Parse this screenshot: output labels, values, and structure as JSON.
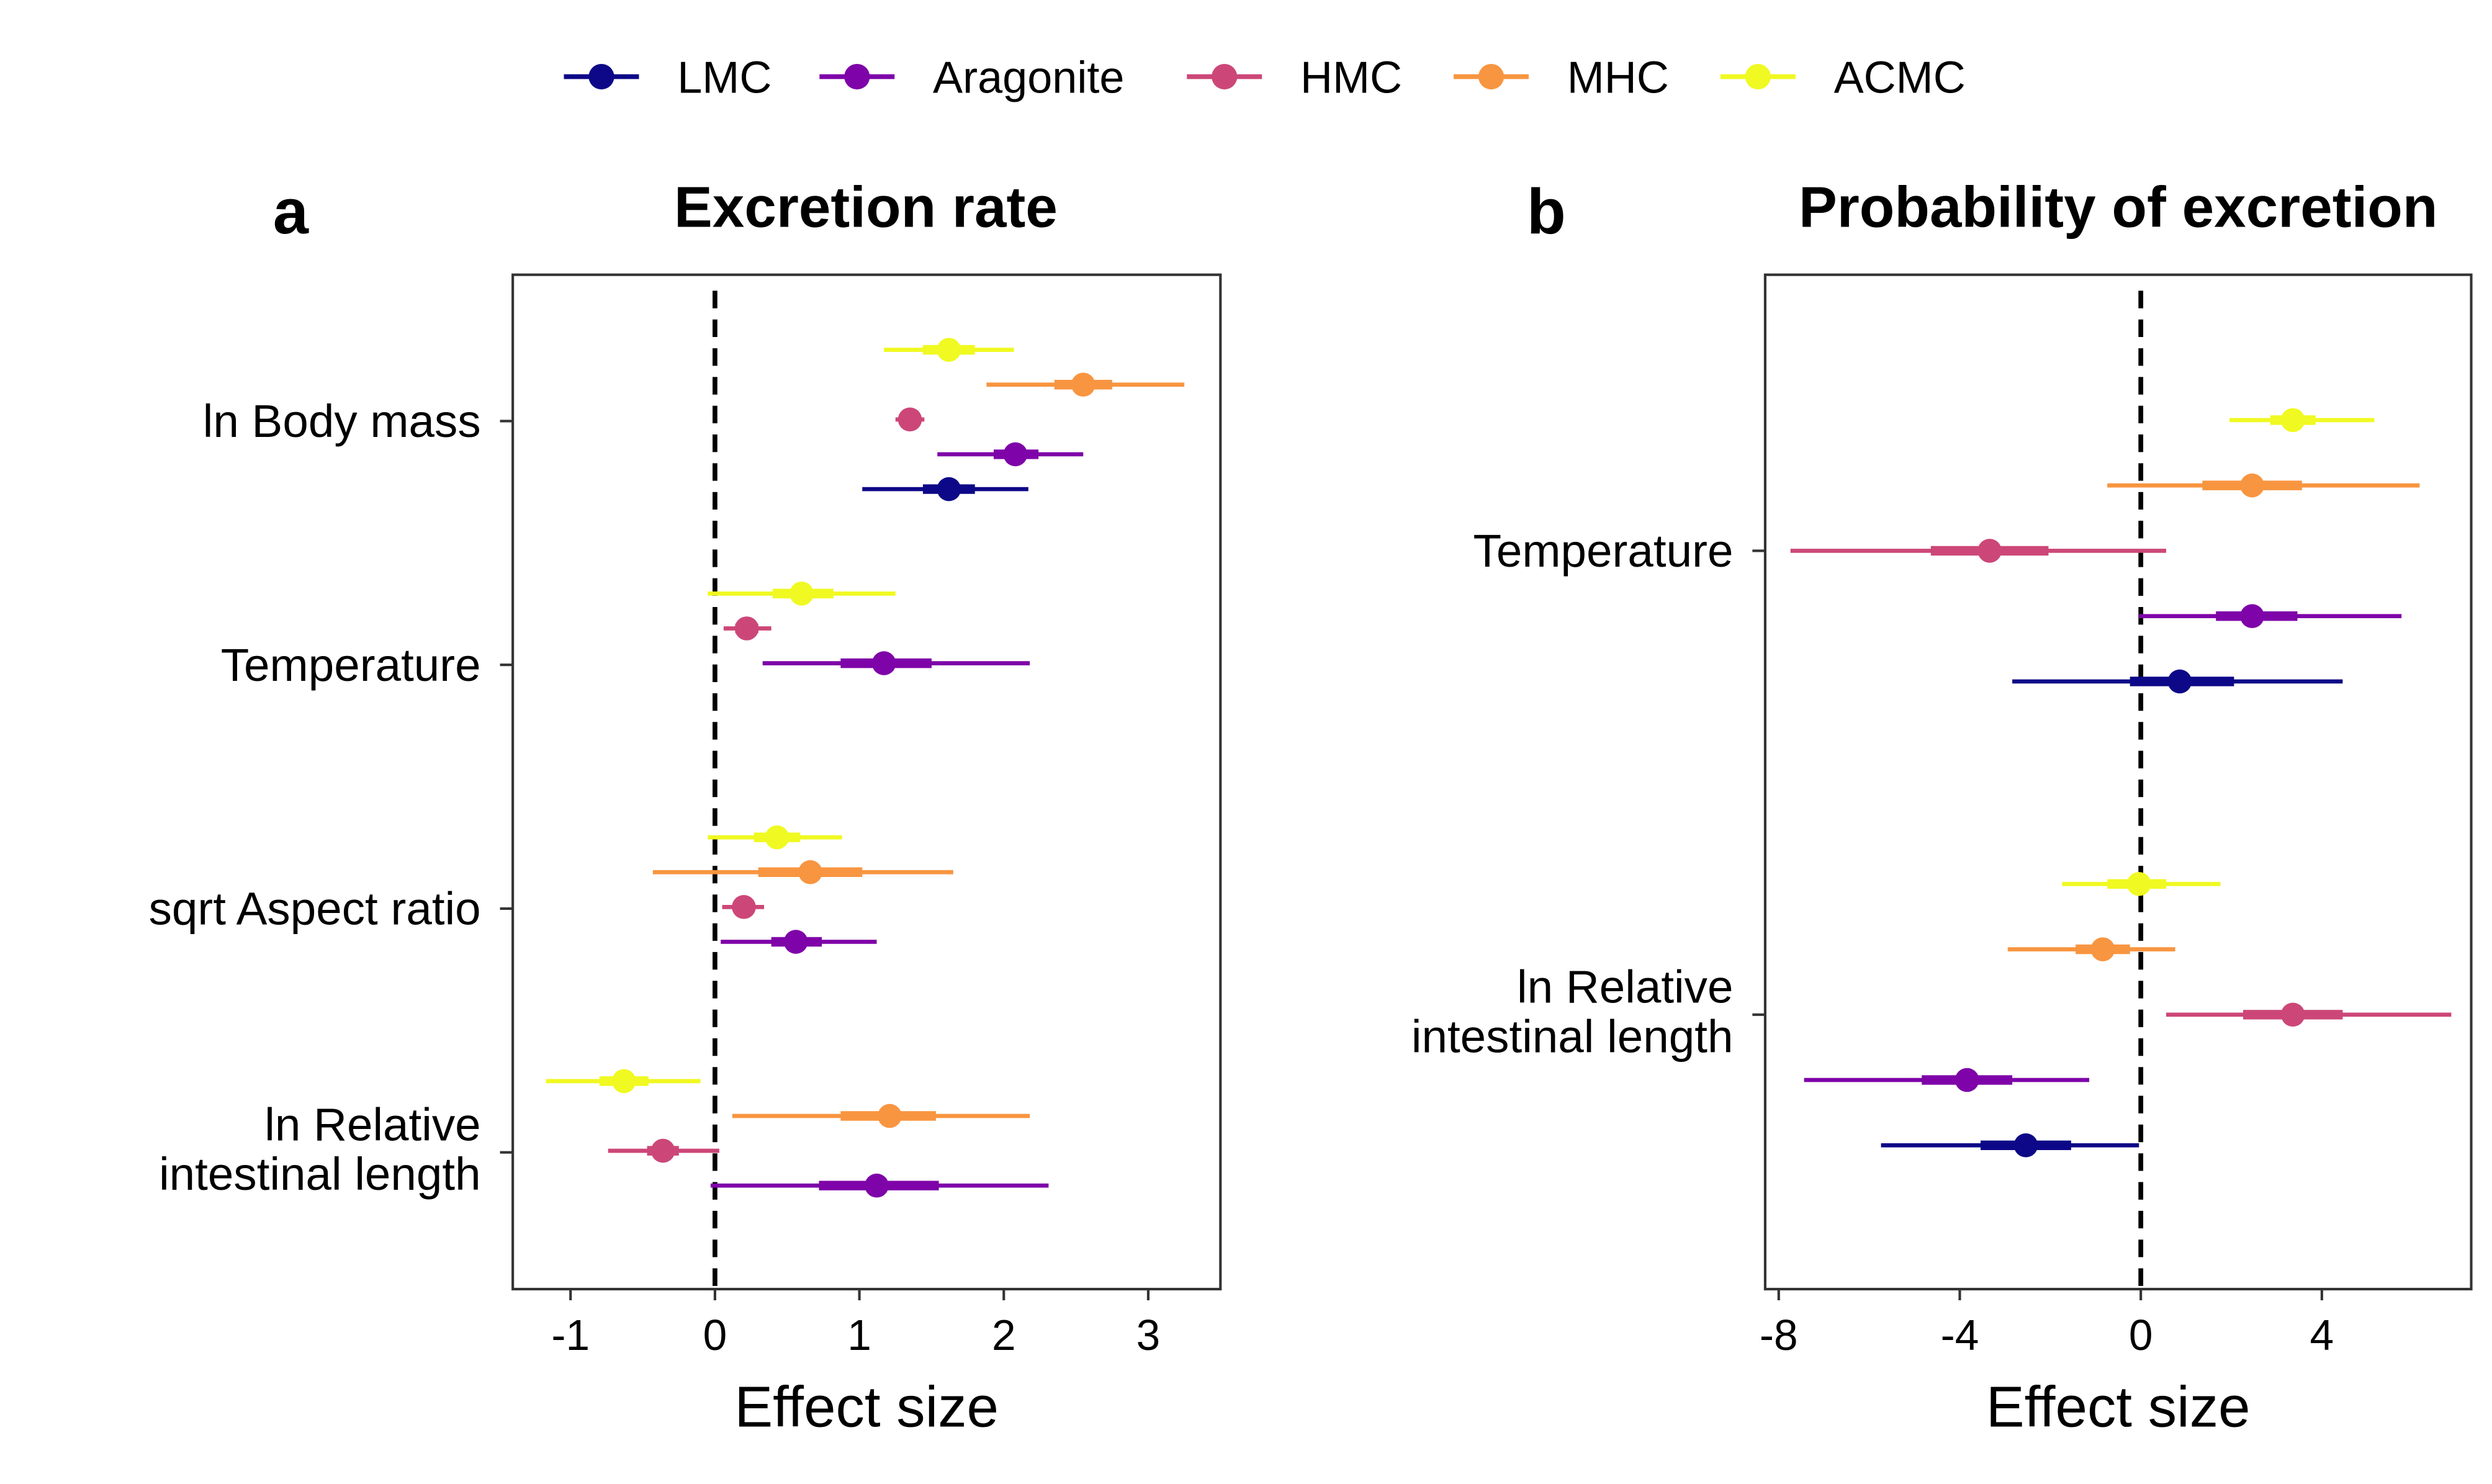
{
  "legend": {
    "items": [
      {
        "label": "LMC",
        "color": "#0d0887"
      },
      {
        "label": "Aragonite",
        "color": "#7e03a8"
      },
      {
        "label": "HMC",
        "color": "#cc4778"
      },
      {
        "label": "MHC",
        "color": "#f89540"
      },
      {
        "label": "ACMC",
        "color": "#f0f921"
      }
    ]
  },
  "chart_data": [
    {
      "type": "scatter",
      "panel_letter": "a",
      "title": "Excretion rate",
      "xlabel": "Effect size",
      "ylabel": "",
      "xlim": [
        -1.4,
        3.5
      ],
      "xticks": [
        -1,
        0,
        1,
        2,
        3
      ],
      "xtick_labels": [
        "-1",
        "0",
        "1",
        "2",
        "3"
      ],
      "reference_line": 0,
      "legend_position": "top",
      "categories": [
        {
          "label": [
            "ln Body mass"
          ],
          "rows": [
            {
              "series": "ACMC",
              "estimate": 1.62,
              "inner": [
                1.44,
                1.8
              ],
              "outer": [
                1.17,
                2.07
              ]
            },
            {
              "series": "MHC",
              "estimate": 2.55,
              "inner": [
                2.35,
                2.75
              ],
              "outer": [
                1.88,
                3.25
              ]
            },
            {
              "series": "HMC",
              "estimate": 1.35,
              "inner": [
                1.29,
                1.41
              ],
              "outer": [
                1.25,
                1.45
              ]
            },
            {
              "series": "Aragonite",
              "estimate": 2.08,
              "inner": [
                1.93,
                2.24
              ],
              "outer": [
                1.54,
                2.55
              ]
            },
            {
              "series": "LMC",
              "estimate": 1.62,
              "inner": [
                1.44,
                1.8
              ],
              "outer": [
                1.02,
                2.17
              ]
            }
          ]
        },
        {
          "label": [
            "Temperature"
          ],
          "rows": [
            {
              "series": "ACMC",
              "estimate": 0.6,
              "inner": [
                0.4,
                0.82
              ],
              "outer": [
                -0.05,
                1.25
              ]
            },
            {
              "series": "HMC",
              "estimate": 0.22,
              "inner": [
                0.14,
                0.3
              ],
              "outer": [
                0.06,
                0.39
              ]
            },
            {
              "series": "Aragonite",
              "estimate": 1.17,
              "inner": [
                0.87,
                1.5
              ],
              "outer": [
                0.33,
                2.18
              ]
            }
          ]
        },
        {
          "label": [
            "sqrt Aspect ratio"
          ],
          "rows": [
            {
              "series": "ACMC",
              "estimate": 0.43,
              "inner": [
                0.27,
                0.59
              ],
              "outer": [
                -0.05,
                0.88
              ]
            },
            {
              "series": "MHC",
              "estimate": 0.66,
              "inner": [
                0.3,
                1.02
              ],
              "outer": [
                -0.43,
                1.65
              ]
            },
            {
              "series": "HMC",
              "estimate": 0.2,
              "inner": [
                0.13,
                0.27
              ],
              "outer": [
                0.05,
                0.34
              ]
            },
            {
              "series": "Aragonite",
              "estimate": 0.56,
              "inner": [
                0.39,
                0.74
              ],
              "outer": [
                0.04,
                1.12
              ]
            }
          ]
        },
        {
          "label": [
            "ln Relative",
            "intestinal length"
          ],
          "rows": [
            {
              "series": "ACMC",
              "estimate": -0.63,
              "inner": [
                -0.8,
                -0.46
              ],
              "outer": [
                -1.17,
                -0.1
              ]
            },
            {
              "series": "MHC",
              "estimate": 1.21,
              "inner": [
                0.87,
                1.53
              ],
              "outer": [
                0.12,
                2.18
              ]
            },
            {
              "series": "HMC",
              "estimate": -0.36,
              "inner": [
                -0.47,
                -0.25
              ],
              "outer": [
                -0.74,
                0.03
              ]
            },
            {
              "series": "Aragonite",
              "estimate": 1.12,
              "inner": [
                0.72,
                1.55
              ],
              "outer": [
                -0.03,
                2.31
              ]
            }
          ]
        }
      ]
    },
    {
      "type": "scatter",
      "panel_letter": "b",
      "title": "Probability of excretion",
      "xlabel": "Effect size",
      "ylabel": "",
      "xlim": [
        -8.3,
        7.3
      ],
      "xticks": [
        -8,
        -4,
        0,
        4
      ],
      "xtick_labels": [
        "-8",
        "-4",
        "0",
        "4"
      ],
      "reference_line": 0,
      "legend_position": "top",
      "categories": [
        {
          "label": [
            "Temperature"
          ],
          "rows": [
            {
              "series": "ACMC",
              "estimate": 3.36,
              "inner": [
                2.86,
                3.86
              ],
              "outer": [
                1.96,
                5.16
              ]
            },
            {
              "series": "MHC",
              "estimate": 2.46,
              "inner": [
                1.36,
                3.56
              ],
              "outer": [
                -0.74,
                6.16
              ]
            },
            {
              "series": "HMC",
              "estimate": -3.34,
              "inner": [
                -4.64,
                -2.04
              ],
              "outer": [
                -7.74,
                0.56
              ]
            },
            {
              "series": "Aragonite",
              "estimate": 2.46,
              "inner": [
                1.66,
                3.46
              ],
              "outer": [
                -0.04,
                5.76
              ]
            },
            {
              "series": "LMC",
              "estimate": 0.86,
              "inner": [
                -0.24,
                2.06
              ],
              "outer": [
                -2.84,
                4.46
              ]
            }
          ]
        },
        {
          "label": [
            "ln Relative",
            "intestinal length"
          ],
          "rows": [
            {
              "series": "ACMC",
              "estimate": -0.04,
              "inner": [
                -0.74,
                0.56
              ],
              "outer": [
                -1.74,
                1.76
              ]
            },
            {
              "series": "MHC",
              "estimate": -0.84,
              "inner": [
                -1.44,
                -0.24
              ],
              "outer": [
                -2.94,
                0.76
              ]
            },
            {
              "series": "HMC",
              "estimate": 3.36,
              "inner": [
                2.26,
                4.46
              ],
              "outer": [
                0.56,
                6.86
              ]
            },
            {
              "series": "Aragonite",
              "estimate": -3.84,
              "inner": [
                -4.84,
                -2.84
              ],
              "outer": [
                -7.44,
                -1.14
              ]
            },
            {
              "series": "LMC",
              "estimate": -2.54,
              "inner": [
                -3.54,
                -1.54
              ],
              "outer": [
                -5.74,
                -0.04
              ]
            }
          ]
        }
      ]
    }
  ]
}
